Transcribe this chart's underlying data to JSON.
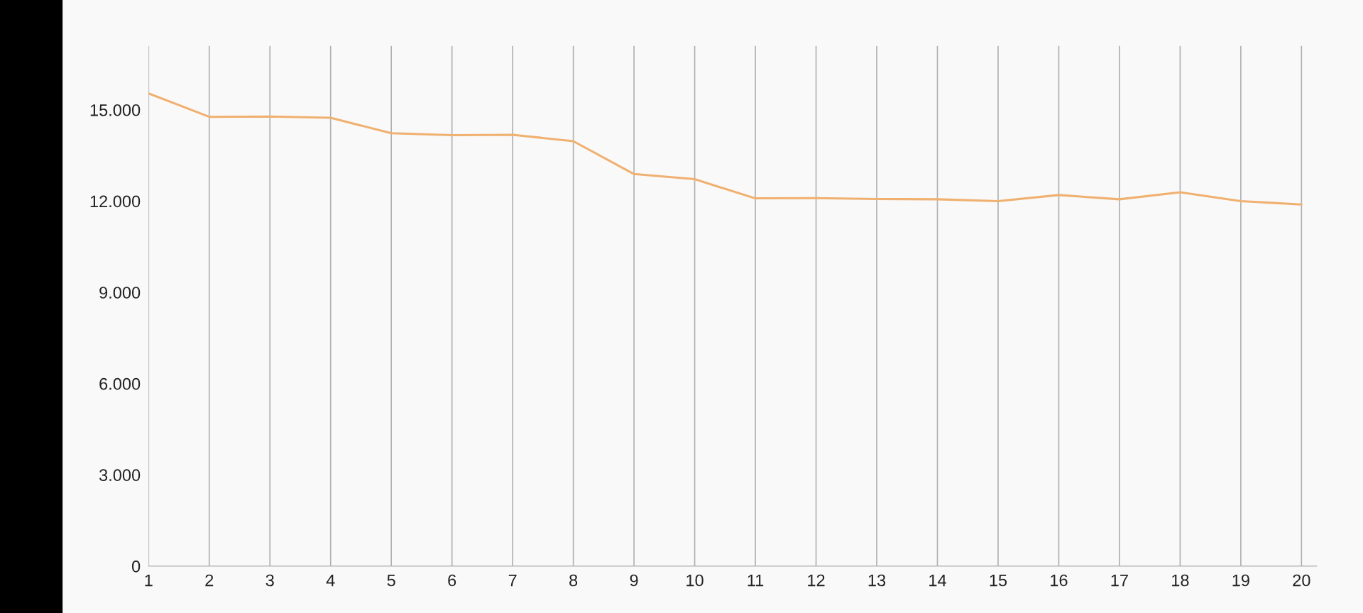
{
  "chart_data": {
    "type": "line",
    "x": [
      1,
      2,
      3,
      4,
      5,
      6,
      7,
      8,
      9,
      10,
      11,
      12,
      13,
      14,
      15,
      16,
      17,
      18,
      19,
      20
    ],
    "series": [
      {
        "color": "#f0b070",
        "values": [
          15540,
          14770,
          14780,
          14740,
          14230,
          14170,
          14180,
          13970,
          12890,
          12720,
          12090,
          12100,
          12070,
          12060,
          12000,
          12200,
          12060,
          12290,
          12000,
          11890
        ]
      }
    ],
    "xlim": [
      1,
      20.25
    ],
    "xticks": [
      1,
      2,
      3,
      4,
      5,
      6,
      7,
      8,
      9,
      10,
      11,
      12,
      13,
      14,
      15,
      16,
      17,
      18,
      19,
      20
    ],
    "ylim": [
      0,
      17100
    ],
    "yticks": [
      0,
      {
        "value": 3000,
        "label": "3.000"
      },
      {
        "value": 6000,
        "label": "6.000"
      },
      {
        "value": 9000,
        "label": "9.000"
      },
      {
        "value": 12000,
        "label": "12.000"
      },
      {
        "value": 15000,
        "label": "15.000"
      }
    ],
    "grid": "x",
    "marker": "none",
    "line_style": "solid"
  }
}
